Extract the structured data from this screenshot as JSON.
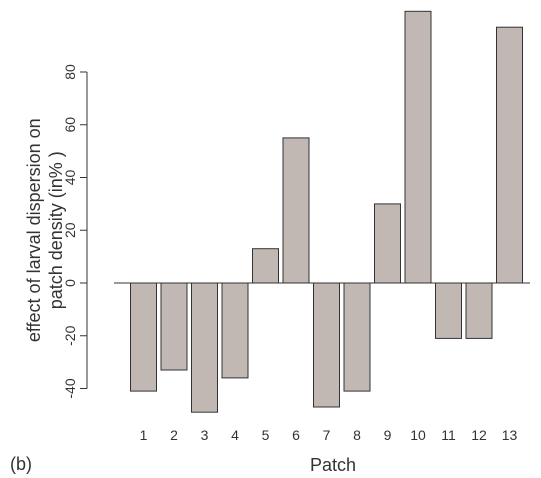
{
  "chart_data": {
    "type": "bar",
    "panel_label": "(b)",
    "xlabel": "Patch",
    "ylabel_line1": "effect of larval dispersion on",
    "ylabel_line2": "patch density  (in% )",
    "categories": [
      "1",
      "2",
      "3",
      "4",
      "5",
      "6",
      "7",
      "8",
      "9",
      "10",
      "11",
      "12",
      "13"
    ],
    "values": [
      -41,
      -33,
      -49,
      -36,
      13,
      55,
      -47,
      -41,
      30,
      103,
      -21,
      -21,
      97
    ],
    "yticks": [
      -40,
      -20,
      0,
      20,
      40,
      60,
      80
    ],
    "ylim": [
      -49,
      103
    ],
    "bar_color": "#c1b8b4",
    "zero_line": true,
    "grid": false
  }
}
